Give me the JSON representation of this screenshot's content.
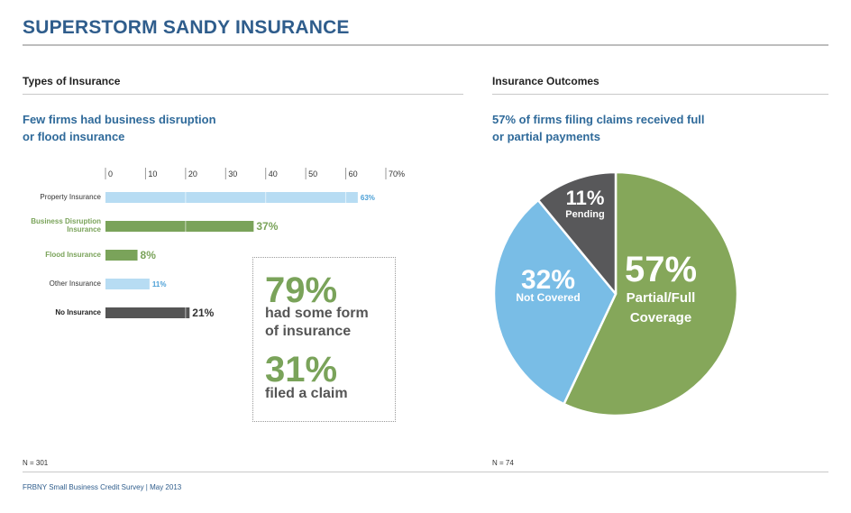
{
  "title": "SUPERSTORM SANDY INSURANCE",
  "left": {
    "heading": "Types of Insurance",
    "subtitle_line1": "Few firms had business disruption",
    "subtitle_line2": "or flood insurance",
    "note": "N = 301"
  },
  "right": {
    "heading": "Insurance Outcomes",
    "subtitle_line1": "57% of firms filing claims received full",
    "subtitle_line2": "or partial payments",
    "note": "N = 74"
  },
  "callout": {
    "pct1": "79%",
    "text1_line1": "had some form",
    "text1_line2": "of insurance",
    "pct2": "31%",
    "text2_line1": "filed a claim"
  },
  "footer": "FRBNY Small Business Credit Survey  |  May 2013",
  "colors": {
    "light_blue": "#b7dcf3",
    "green": "#7aa35a",
    "dark": "#555555",
    "pie_blue": "#79bde6",
    "pie_green": "#85a75a",
    "pie_dark": "#58585a",
    "title_blue": "#2f5d8c"
  },
  "chart_data": [
    {
      "type": "bar",
      "orientation": "horizontal",
      "title": "Types of Insurance",
      "categories": [
        "Property Insurance",
        "Business Disruption Insurance",
        "Flood Insurance",
        "Other Insurance",
        "No Insurance"
      ],
      "category_lines": [
        [
          "Property Insurance"
        ],
        [
          "Business Disruption",
          "Insurance"
        ],
        [
          "Flood Insurance"
        ],
        [
          "Other Insurance"
        ],
        [
          "No Insurance"
        ]
      ],
      "values": [
        63,
        37,
        8,
        11,
        21
      ],
      "value_labels": [
        "63%",
        "37%",
        "8%",
        "11%",
        "21%"
      ],
      "bar_colors": [
        "#b7dcf3",
        "#7aa35a",
        "#7aa35a",
        "#b7dcf3",
        "#555555"
      ],
      "label_colors": [
        "#333333",
        "#7aa35a",
        "#7aa35a",
        "#333333",
        "#222222"
      ],
      "label_bold": [
        false,
        true,
        true,
        false,
        true
      ],
      "value_colors": [
        "#4a9fd6",
        "#7aa35a",
        "#7aa35a",
        "#4a9fd6",
        "#333333"
      ],
      "value_sizes": [
        "small",
        "large",
        "large",
        "small",
        "large"
      ],
      "ticks": [
        "0",
        "10",
        "20",
        "30",
        "40",
        "50",
        "60",
        "70%"
      ],
      "xlim": [
        0,
        70
      ],
      "grid": true
    },
    {
      "type": "pie",
      "title": "Insurance Outcomes",
      "slices": [
        {
          "label_line1": "Partial/Full",
          "label_line2": "Coverage",
          "value": 57,
          "pct_label": "57%",
          "color": "#85a75a"
        },
        {
          "label_line1": "Not Covered",
          "label_line2": "",
          "value": 32,
          "pct_label": "32%",
          "color": "#79bde6"
        },
        {
          "label_line1": "Pending",
          "label_line2": "",
          "value": 11,
          "pct_label": "11%",
          "color": "#58585a"
        }
      ]
    }
  ]
}
